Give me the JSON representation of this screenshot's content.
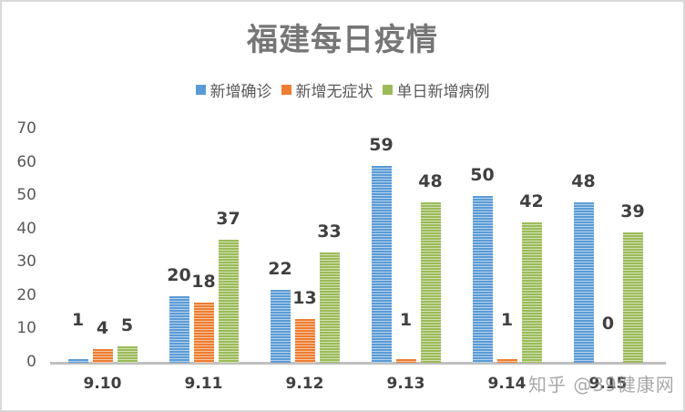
{
  "chart_data": {
    "type": "bar",
    "title": "福建每日疫情",
    "xlabel": "",
    "ylabel": "",
    "ylim": [
      0,
      70
    ],
    "yticks": [
      0,
      10,
      20,
      30,
      40,
      50,
      60,
      70
    ],
    "grid": false,
    "legend_position": "top",
    "categories": [
      "9.10",
      "9.11",
      "9.12",
      "9.13",
      "9.14",
      "9.15"
    ],
    "series": [
      {
        "name": "新增确诊",
        "color": "#5B9BD5",
        "values": [
          1,
          20,
          22,
          59,
          50,
          48
        ]
      },
      {
        "name": "新增无症状",
        "color": "#ED7D31",
        "values": [
          4,
          18,
          13,
          1,
          1,
          0
        ]
      },
      {
        "name": "单日新增病例",
        "color": "#9BBB59",
        "values": [
          5,
          37,
          33,
          48,
          42,
          39
        ]
      }
    ],
    "data_labels": true
  },
  "watermark": "知乎 @39健康网"
}
